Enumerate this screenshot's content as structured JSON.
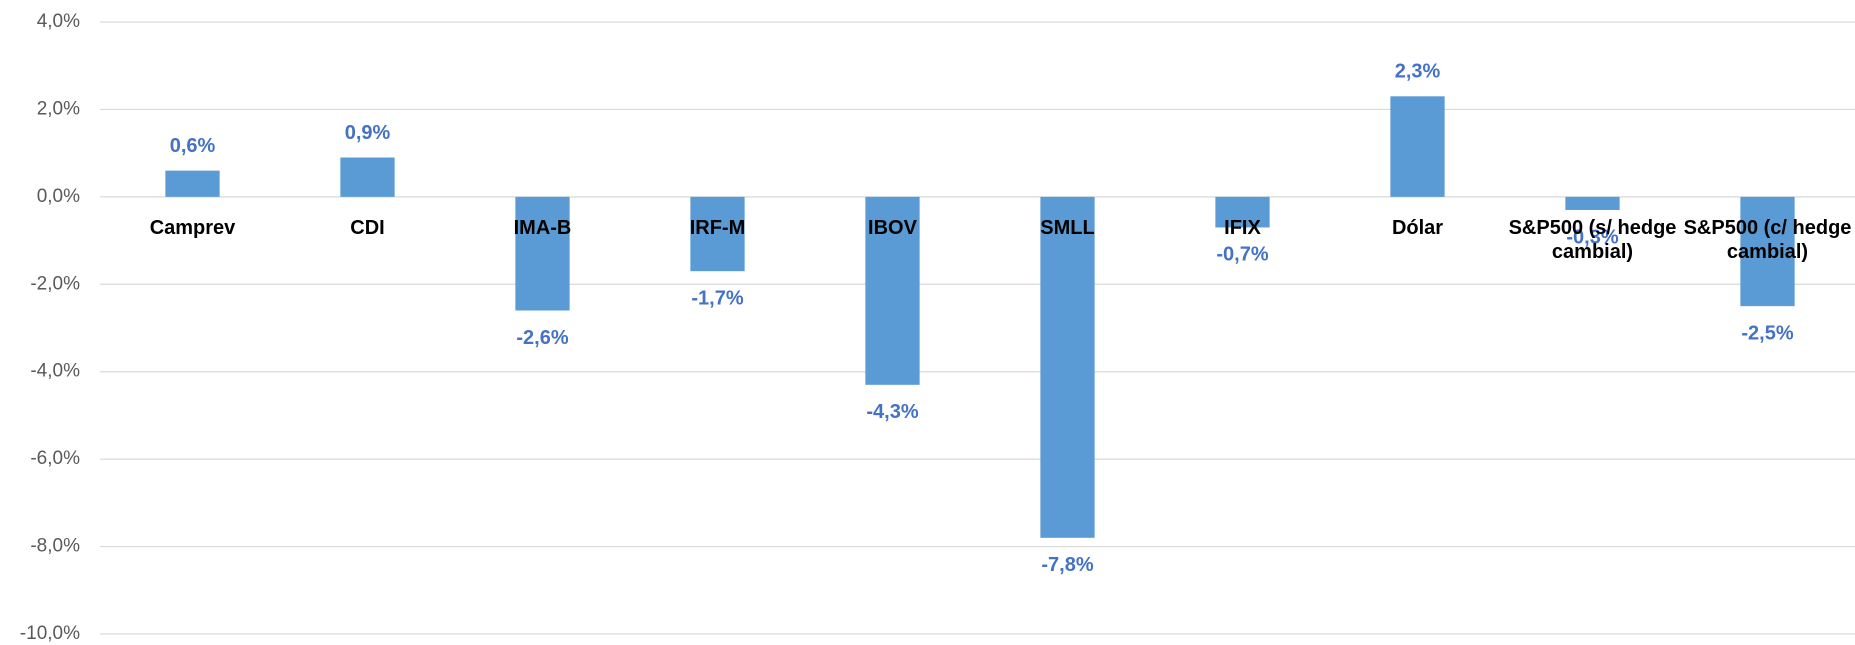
{
  "chart_data": {
    "type": "bar",
    "categories": [
      "Camprev",
      "CDI",
      "IMA-B",
      "IRF-M",
      "IBOV",
      "SMLL",
      "IFIX",
      "Dólar",
      "S&P500 (s/ hedge cambial)",
      "S&P500 (c/ hedge cambial)"
    ],
    "values": [
      0.6,
      0.9,
      -2.6,
      -1.7,
      -4.3,
      -7.8,
      -0.7,
      2.3,
      -0.3,
      -2.5
    ],
    "value_labels": [
      "0,6%",
      "0,9%",
      "-2,6%",
      "-1,7%",
      "-4,3%",
      "-7,8%",
      "-0,7%",
      "2,3%",
      "-0,3%",
      "-2,5%"
    ],
    "color": "#5b9bd5",
    "ylim": [
      -10,
      4
    ],
    "yticks": [
      {
        "value": -10,
        "label": "-10,0%"
      },
      {
        "value": -8,
        "label": "-8,0%"
      },
      {
        "value": -6,
        "label": "-6,0%"
      },
      {
        "value": -4,
        "label": "-4,0%"
      },
      {
        "value": -2,
        "label": "-2,0%"
      },
      {
        "value": 0,
        "label": "0,0%"
      },
      {
        "value": 2,
        "label": "2,0%"
      },
      {
        "value": 4,
        "label": "4,0%"
      }
    ],
    "grid": true
  }
}
